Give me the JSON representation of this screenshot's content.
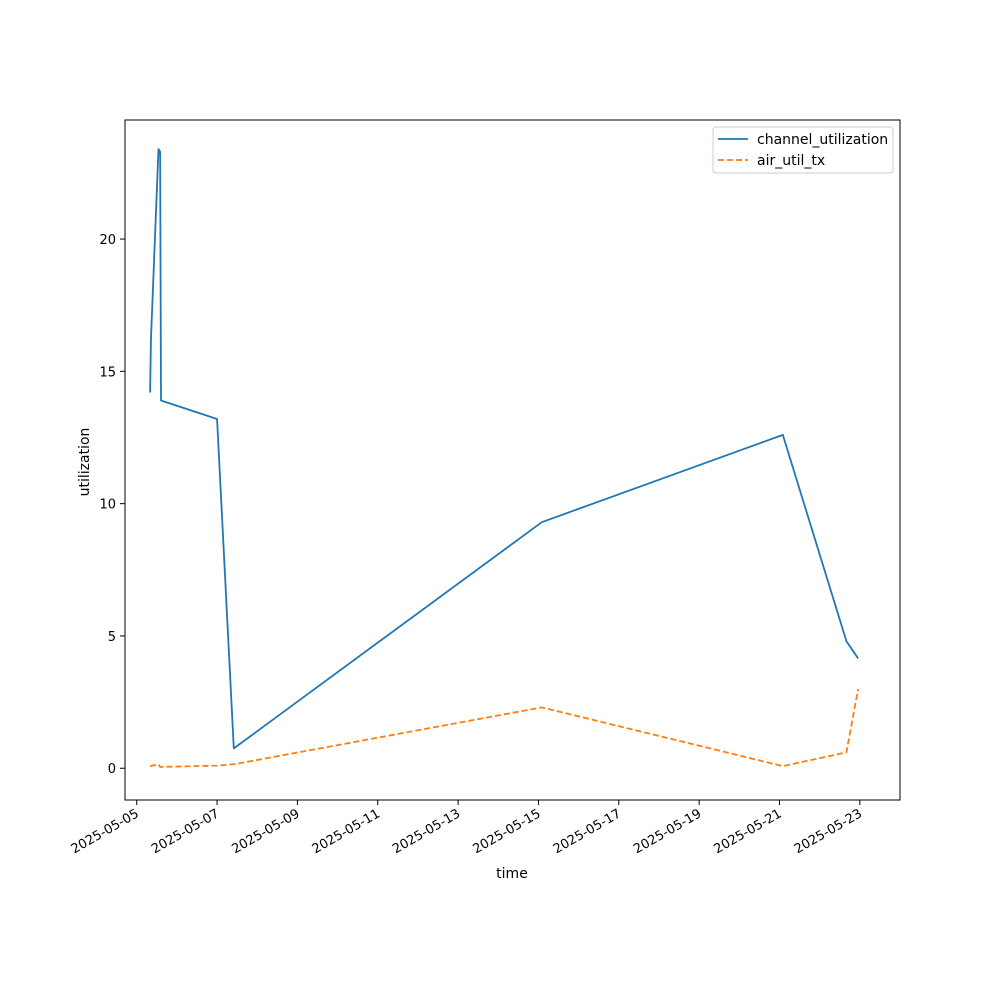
{
  "chart_data": {
    "type": "line",
    "title": "",
    "xlabel": "time",
    "ylabel": "utilization",
    "xlim": [
      "2025-05-04 17:00",
      "2025-05-24 00:00"
    ],
    "ylim": [
      -1.2,
      24.5
    ],
    "x_ticks": [
      "2025-05-05",
      "2025-05-07",
      "2025-05-09",
      "2025-05-11",
      "2025-05-13",
      "2025-05-15",
      "2025-05-17",
      "2025-05-19",
      "2025-05-21",
      "2025-05-23"
    ],
    "y_ticks": [
      0,
      5,
      10,
      15,
      20
    ],
    "grid": false,
    "legend": {
      "placement": "top-right"
    },
    "series": [
      {
        "name": "channel_utilization",
        "color": "#1f77b4",
        "style": "solid",
        "points": [
          [
            "2025-05-05 08:00",
            14.2
          ],
          [
            "2025-05-05 08:30",
            16.2
          ],
          [
            "2025-05-05 13:00",
            23.4
          ],
          [
            "2025-05-05 14:00",
            23.3
          ],
          [
            "2025-05-05 14:30",
            13.9
          ],
          [
            "2025-05-07 00:00",
            13.2
          ],
          [
            "2025-05-07 10:00",
            0.75
          ],
          [
            "2025-05-15 02:00",
            9.3
          ],
          [
            "2025-05-21 02:00",
            12.6
          ],
          [
            "2025-05-22 16:00",
            4.8
          ],
          [
            "2025-05-22 23:00",
            4.15
          ]
        ]
      },
      {
        "name": "air_util_tx",
        "color": "#ff7f0e",
        "style": "dashed",
        "points": [
          [
            "2025-05-05 08:00",
            0.08
          ],
          [
            "2025-05-05 13:00",
            0.15
          ],
          [
            "2025-05-05 14:00",
            0.05
          ],
          [
            "2025-05-05 14:30",
            0.05
          ],
          [
            "2025-05-07 00:00",
            0.1
          ],
          [
            "2025-05-07 10:00",
            0.15
          ],
          [
            "2025-05-15 02:00",
            2.3
          ],
          [
            "2025-05-21 02:00",
            0.08
          ],
          [
            "2025-05-22 16:00",
            0.6
          ],
          [
            "2025-05-22 23:00",
            3.0
          ]
        ]
      }
    ]
  }
}
